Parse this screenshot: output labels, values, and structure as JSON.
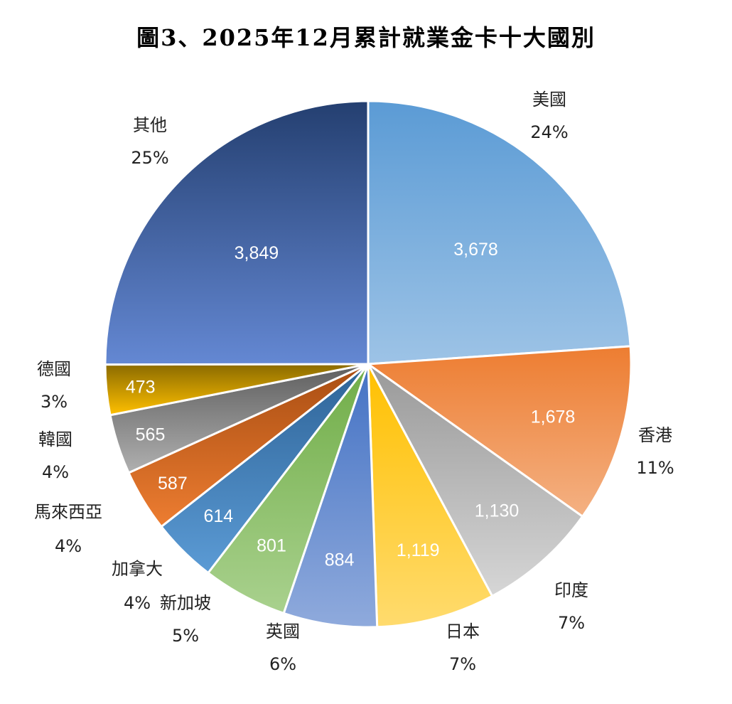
{
  "chart_data": {
    "type": "pie",
    "title": "圖3、2025年12月累計就業金卡十大國別",
    "categories": [
      "美國",
      "香港",
      "印度",
      "日本",
      "英國",
      "新加坡",
      "加拿大",
      "馬來西亞",
      "韓國",
      "德國",
      "其他"
    ],
    "values": [
      3678,
      1678,
      1130,
      1119,
      884,
      801,
      614,
      587,
      565,
      473,
      3849
    ],
    "value_labels": [
      "3,678",
      "1,678",
      "1,130",
      "1,119",
      "884",
      "801",
      "614",
      "587",
      "565",
      "473",
      "3,849"
    ],
    "percent_labels": [
      "24%",
      "11%",
      "7%",
      "7%",
      "6%",
      "5%",
      "4%",
      "4%",
      "4%",
      "3%",
      "25%"
    ],
    "colors": [
      [
        "#5b9bd5",
        "#9dc3e6"
      ],
      [
        "#ed7d31",
        "#f4b183"
      ],
      [
        "#999999",
        "#d6d6d6"
      ],
      [
        "#ffc000",
        "#ffdb6e"
      ],
      [
        "#4472c4",
        "#8faadc"
      ],
      [
        "#70ad47",
        "#a9d18e"
      ],
      [
        "#2e6397",
        "#5b9bd5"
      ],
      [
        "#a84d12",
        "#ed7d31"
      ],
      [
        "#5e5e5e",
        "#b0b0b0"
      ],
      [
        "#8a6a00",
        "#ffc000"
      ],
      [
        "#243f70",
        "#6488d3"
      ]
    ],
    "legend": "none"
  }
}
